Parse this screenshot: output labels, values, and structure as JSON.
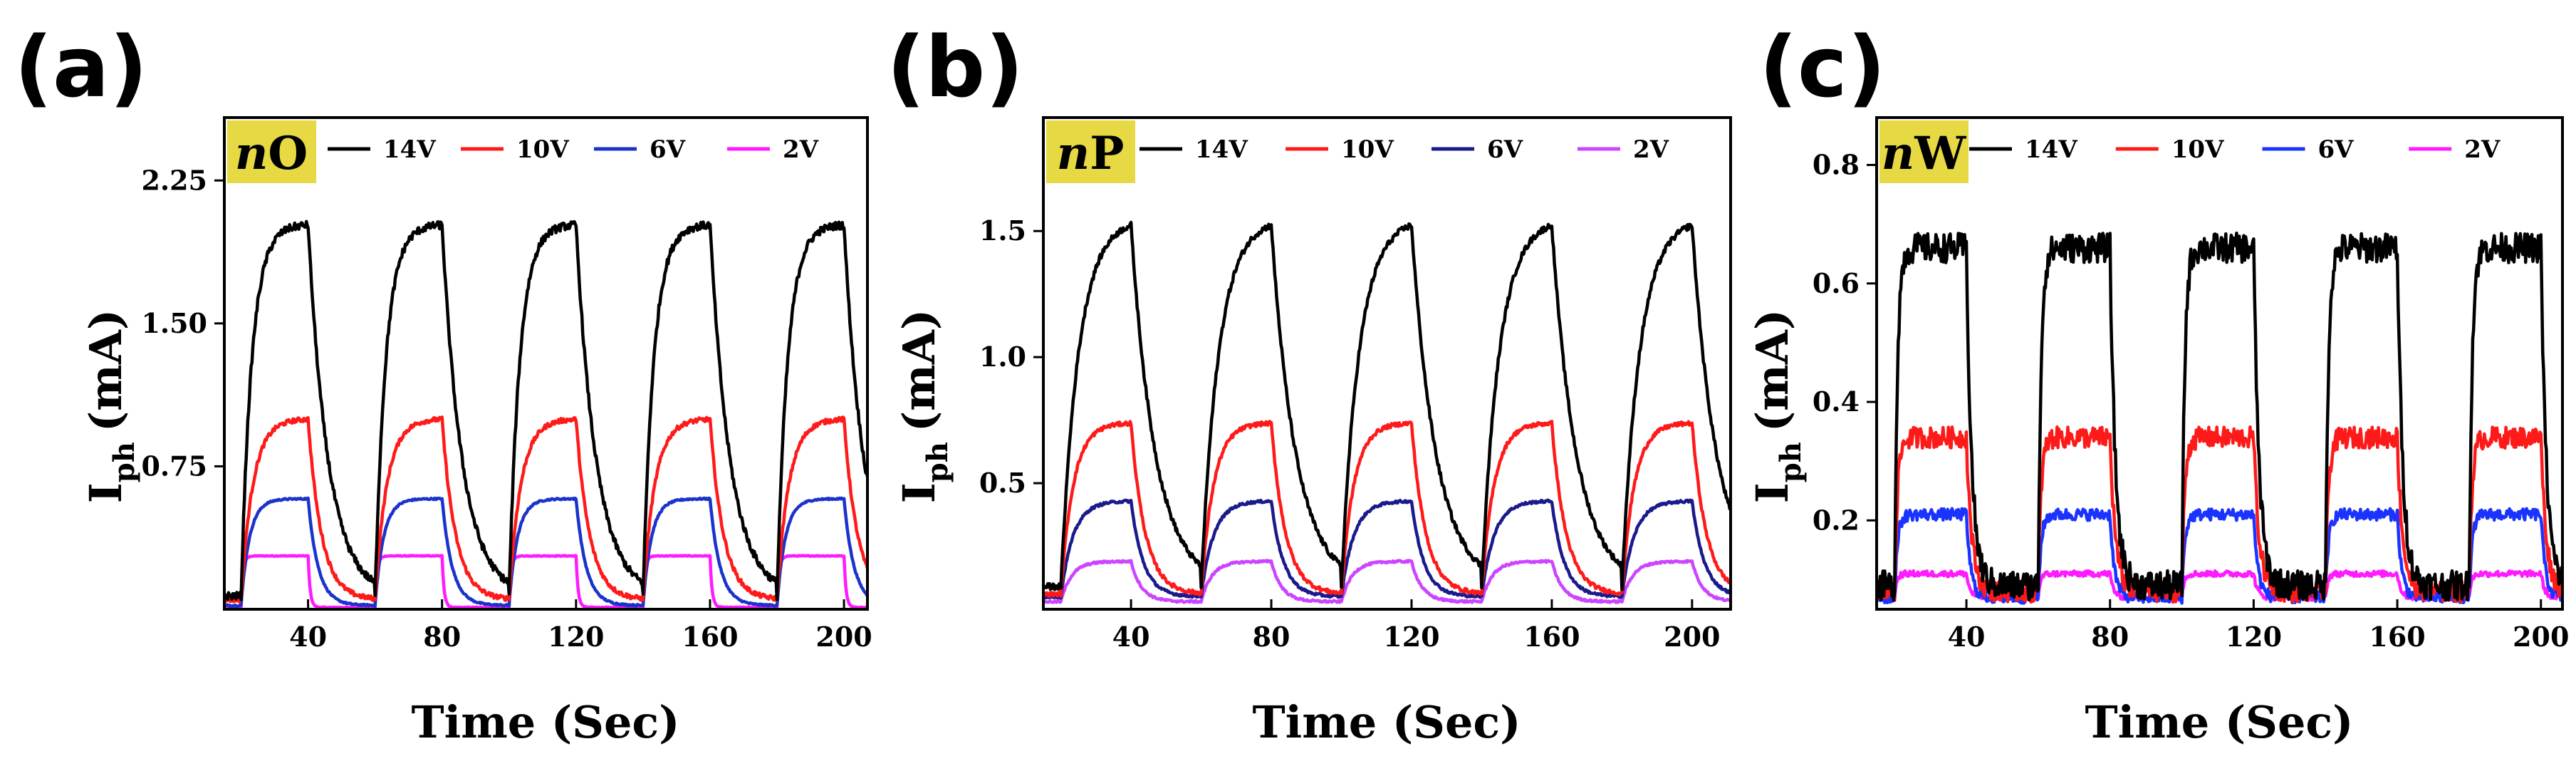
{
  "chart_data": [
    {
      "type": "line",
      "panel_label": "(a)",
      "badge": {
        "italic": "n",
        "text": "O",
        "color": "#e6d944"
      },
      "xlabel": "Time (Sec)",
      "ylabel_main": "I",
      "ylabel_sub": "ph",
      "ylabel_unit": "(mA)",
      "xlim": [
        15,
        207
      ],
      "ylim": [
        0,
        2.58
      ],
      "xticks": [
        40,
        80,
        120,
        160,
        200
      ],
      "xtick_labels": [
        "40",
        "80",
        "120",
        "160",
        "200"
      ],
      "yticks": [
        0.75,
        1.5,
        2.25
      ],
      "ytick_labels": [
        "0.75",
        "1.50",
        "2.25"
      ],
      "pulse": {
        "first_on": 20,
        "on_duration": 20,
        "period": 40,
        "count": 5
      },
      "series": [
        {
          "name": "14V",
          "baseline": 0.07,
          "plateau": 2.02,
          "rise": 3.2,
          "decay": 6.0,
          "noise": 0.02,
          "color": "#000000"
        },
        {
          "name": "10V",
          "baseline": 0.05,
          "plateau": 1.0,
          "rise": 3.5,
          "decay": 4.0,
          "noise": 0.012,
          "color": "#ff1a1a"
        },
        {
          "name": "6V",
          "baseline": 0.02,
          "plateau": 0.58,
          "rise": 2.5,
          "decay": 3.0,
          "noise": 0.004,
          "color": "#1a33cc"
        },
        {
          "name": "2V",
          "baseline": 0.01,
          "plateau": 0.28,
          "rise": 0.6,
          "decay": 0.6,
          "noise": 0.002,
          "color": "#ff1aff"
        }
      ]
    },
    {
      "type": "line",
      "panel_label": "(b)",
      "badge": {
        "italic": "n",
        "text": "P",
        "color": "#e6d944"
      },
      "xlabel": "Time (Sec)",
      "ylabel_main": "I",
      "ylabel_sub": "ph",
      "ylabel_unit": "(mA)",
      "xlim": [
        15,
        211
      ],
      "ylim": [
        0,
        1.95
      ],
      "xticks": [
        40,
        80,
        120,
        160,
        200
      ],
      "xtick_labels": [
        "40",
        "80",
        "120",
        "160",
        "200"
      ],
      "yticks": [
        0.5,
        1.0,
        1.5
      ],
      "ytick_labels": [
        "0.5",
        "1.0",
        "1.5"
      ],
      "pulse": {
        "first_on": 20,
        "on_duration": 20,
        "period": 40,
        "count": 5
      },
      "series": [
        {
          "name": "14V",
          "baseline": 0.09,
          "plateau": 1.55,
          "rise": 5.0,
          "decay": 7.0,
          "noise": 0.012,
          "color": "#000000"
        },
        {
          "name": "10V",
          "baseline": 0.06,
          "plateau": 0.74,
          "rise": 3.5,
          "decay": 4.0,
          "noise": 0.008,
          "color": "#ff1a1a"
        },
        {
          "name": "6V",
          "baseline": 0.05,
          "plateau": 0.43,
          "rise": 3.5,
          "decay": 3.5,
          "noise": 0.005,
          "color": "#1a1a8c"
        },
        {
          "name": "2V",
          "baseline": 0.03,
          "plateau": 0.19,
          "rise": 3.0,
          "decay": 3.0,
          "noise": 0.004,
          "color": "#cc44ff"
        }
      ]
    },
    {
      "type": "line",
      "panel_label": "(c)",
      "badge": {
        "italic": "n",
        "text": "W",
        "color": "#e6d944"
      },
      "xlabel": "Time (Sec)",
      "ylabel_main": "I",
      "ylabel_sub": "ph",
      "ylabel_unit": "(mA)",
      "xlim": [
        15,
        206
      ],
      "ylim": [
        0.05,
        0.88
      ],
      "xticks": [
        40,
        80,
        120,
        160,
        200
      ],
      "xtick_labels": [
        "40",
        "80",
        "120",
        "160",
        "200"
      ],
      "yticks": [
        0.2,
        0.4,
        0.6,
        0.8
      ],
      "ytick_labels": [
        "0.2",
        "0.4",
        "0.6",
        "0.8"
      ],
      "pulse": {
        "first_on": 20,
        "on_duration": 20,
        "period": 40,
        "count": 5
      },
      "series": [
        {
          "name": "14V",
          "baseline": 0.09,
          "plateau": 0.66,
          "rise": 0.8,
          "decay": 1.5,
          "noise": 0.025,
          "color": "#000000"
        },
        {
          "name": "10V",
          "baseline": 0.08,
          "plateau": 0.34,
          "rise": 0.8,
          "decay": 1.5,
          "noise": 0.018,
          "color": "#ff1a1a"
        },
        {
          "name": "6V",
          "baseline": 0.07,
          "plateau": 0.21,
          "rise": 0.8,
          "decay": 1.2,
          "noise": 0.01,
          "color": "#1a33ff"
        },
        {
          "name": "2V",
          "baseline": 0.07,
          "plateau": 0.11,
          "rise": 0.6,
          "decay": 1.0,
          "noise": 0.005,
          "color": "#ff1aff"
        }
      ]
    }
  ]
}
